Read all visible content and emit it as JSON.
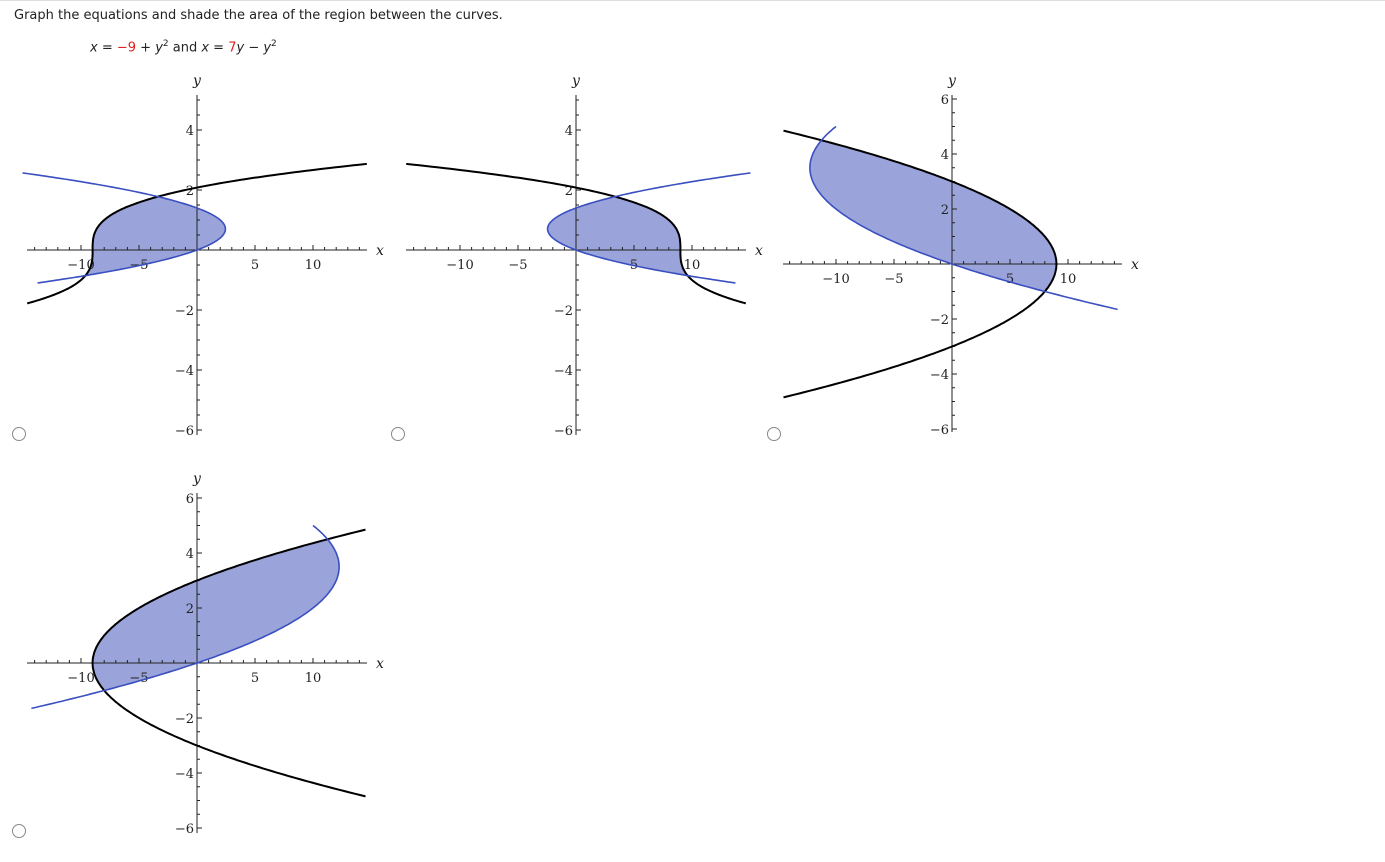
{
  "question": {
    "prompt": "Graph the equations and shade the area of the region between the curves.",
    "equation": {
      "lhs1": "x = ",
      "c1": "−9",
      "rest1": " + y",
      "exp1": "2",
      "and": " and ",
      "lhs2": "x = ",
      "c2": "7",
      "rest2": "y − y",
      "exp2": "2"
    }
  },
  "colors": {
    "curve_black": "#000000",
    "curve_blue": "#3a4fc0",
    "shade": "#9aa4da",
    "accent_red": "#e0201a"
  },
  "chart_data": [
    {
      "type": "line",
      "option": 1,
      "xlabel": "x",
      "ylabel": "y",
      "xlim": [
        -14.6,
        14.6
      ],
      "ylim": [
        -6.2,
        5.2
      ],
      "x_ticks": [
        "−10",
        "−5",
        "5",
        "10"
      ],
      "x_tick_values": [
        -10,
        -5,
        5,
        10
      ],
      "y_ticks": [
        "4",
        "2",
        "−2",
        "−4",
        "−6"
      ],
      "y_tick_values": [
        4,
        2,
        -2,
        -4,
        -6
      ],
      "curves": [
        {
          "color": "black",
          "form": "x = y^3 - 9",
          "coeffs": [
            -9,
            0,
            0,
            1
          ],
          "y_range": [
            -1.78,
            2.87
          ]
        },
        {
          "color": "blue",
          "form": "x = 7y - 5y^2",
          "coeffs": [
            0,
            7,
            -5,
            0
          ],
          "y_range": [
            -1.1,
            2.57
          ]
        }
      ],
      "shaded_y_range": [
        -0.85,
        1.78
      ]
    },
    {
      "type": "line",
      "option": 2,
      "xlabel": "x",
      "ylabel": "y",
      "xlim": [
        -14.6,
        14.6
      ],
      "ylim": [
        -6.2,
        5.2
      ],
      "x_ticks": [
        "−10",
        "−5",
        "5",
        "10"
      ],
      "x_tick_values": [
        -10,
        -5,
        5,
        10
      ],
      "y_ticks": [
        "4",
        "2",
        "−2",
        "−4",
        "−6"
      ],
      "y_tick_values": [
        4,
        2,
        -2,
        -4,
        -6
      ],
      "curves": [
        {
          "color": "black",
          "form": "x = 9 - y^3",
          "coeffs": [
            9,
            0,
            0,
            -1
          ],
          "y_range": [
            -1.78,
            2.87
          ]
        },
        {
          "color": "blue",
          "form": "x = 5y^2 - 7y",
          "coeffs": [
            0,
            -7,
            5,
            0
          ],
          "y_range": [
            -1.1,
            2.57
          ]
        }
      ],
      "shaded_y_range": [
        -0.85,
        1.78
      ]
    },
    {
      "type": "line",
      "option": 3,
      "xlabel": "x",
      "ylabel": "y",
      "xlim": [
        -14.6,
        14.6
      ],
      "ylim": [
        -6.1,
        6.1
      ],
      "x_ticks": [
        "−10",
        "−5",
        "5",
        "10"
      ],
      "x_tick_values": [
        -10,
        -5,
        5,
        10
      ],
      "y_ticks": [
        "6",
        "4",
        "2",
        "−2",
        "−4",
        "−6"
      ],
      "y_tick_values": [
        6,
        4,
        2,
        -2,
        -4,
        -6
      ],
      "curves": [
        {
          "color": "black",
          "form": "x = 9 - y^2",
          "coeffs": [
            9,
            0,
            -1,
            0
          ],
          "y_range": [
            -4.85,
            4.85
          ]
        },
        {
          "color": "blue",
          "form": "x = y^2 - 7y",
          "coeffs": [
            0,
            -7,
            1,
            0
          ],
          "y_range": [
            -1.65,
            5
          ]
        }
      ],
      "shaded_y_range": [
        -1,
        4.5
      ]
    },
    {
      "type": "line",
      "option": 4,
      "xlabel": "x",
      "ylabel": "y",
      "xlim": [
        -14.6,
        14.6
      ],
      "ylim": [
        -6.1,
        6.1
      ],
      "x_ticks": [
        "−10",
        "−5",
        "5",
        "10"
      ],
      "x_tick_values": [
        -10,
        -5,
        5,
        10
      ],
      "y_ticks": [
        "6",
        "4",
        "2",
        "−2",
        "−4",
        "−6"
      ],
      "y_tick_values": [
        6,
        4,
        2,
        -2,
        -4,
        -6
      ],
      "curves": [
        {
          "color": "black",
          "form": "x = y^2 - 9",
          "coeffs": [
            -9,
            0,
            1,
            0
          ],
          "y_range": [
            -4.85,
            4.85
          ]
        },
        {
          "color": "blue",
          "form": "x = 7y - y^2",
          "coeffs": [
            0,
            7,
            -1,
            0
          ],
          "y_range": [
            -1.65,
            5
          ]
        }
      ],
      "shaded_y_range": [
        -1,
        4.5
      ]
    }
  ]
}
